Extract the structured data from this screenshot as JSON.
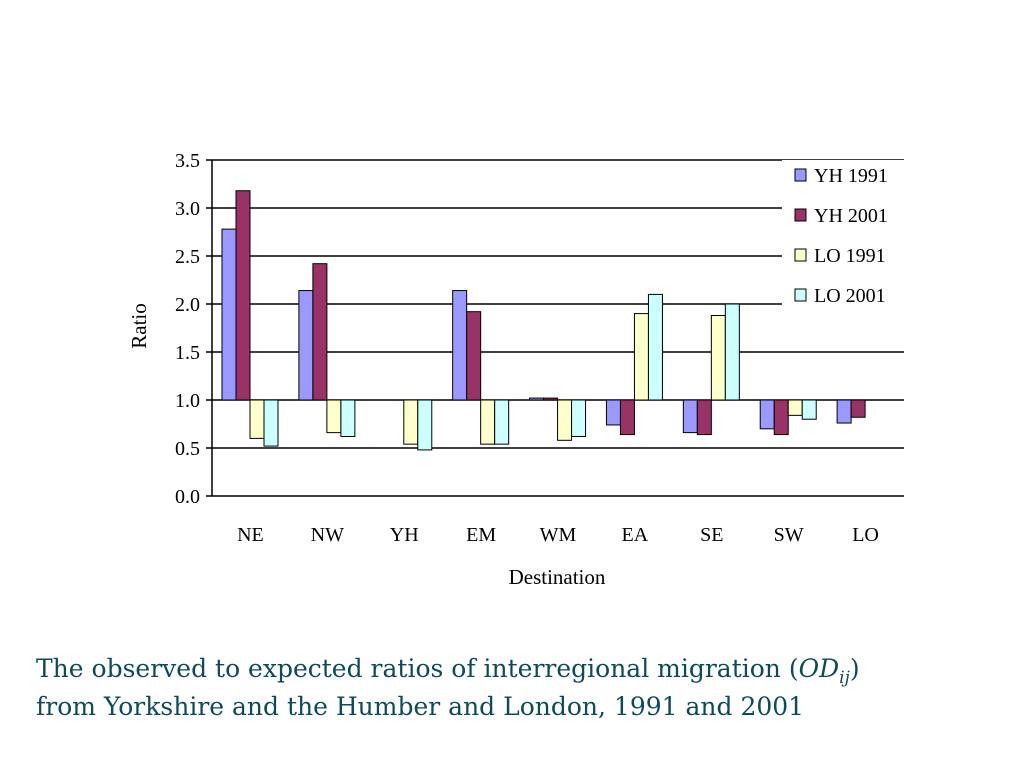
{
  "chart_data": {
    "type": "bar",
    "ylabel": "Ratio",
    "xlabel": "Destination",
    "ylim": [
      0,
      3.5
    ],
    "baseline": 1.0,
    "yticks": [
      "0.0",
      "0.5",
      "1.0",
      "1.5",
      "2.0",
      "2.5",
      "3.0",
      "3.5"
    ],
    "grid": true,
    "legend_position": "top-right",
    "categories": [
      "NE",
      "NW",
      "YH",
      "EM",
      "WM",
      "EA",
      "SE",
      "SW",
      "LO"
    ],
    "series": [
      {
        "name": "YH 1991",
        "color": "#9999ff",
        "values": [
          2.78,
          2.14,
          null,
          2.14,
          1.02,
          0.74,
          0.66,
          0.7,
          0.76
        ]
      },
      {
        "name": "YH 2001",
        "color": "#993366",
        "values": [
          3.18,
          2.42,
          null,
          1.92,
          1.02,
          0.64,
          0.64,
          0.64,
          0.82
        ]
      },
      {
        "name": "LO 1991",
        "color": "#ffffcc",
        "values": [
          0.6,
          0.66,
          0.54,
          0.54,
          0.58,
          1.9,
          1.88,
          0.84,
          null
        ]
      },
      {
        "name": "LO 2001",
        "color": "#ccffff",
        "values": [
          0.52,
          0.62,
          0.48,
          0.54,
          0.62,
          2.1,
          2.0,
          0.8,
          null
        ]
      }
    ]
  },
  "caption": {
    "line1_before": "The observed to expected ratios of interregional migration (",
    "od": "OD",
    "od_sub": "ij",
    "line1_after": ")",
    "line2": "from Yorkshire and the Humber and London, 1991 and 2001"
  }
}
